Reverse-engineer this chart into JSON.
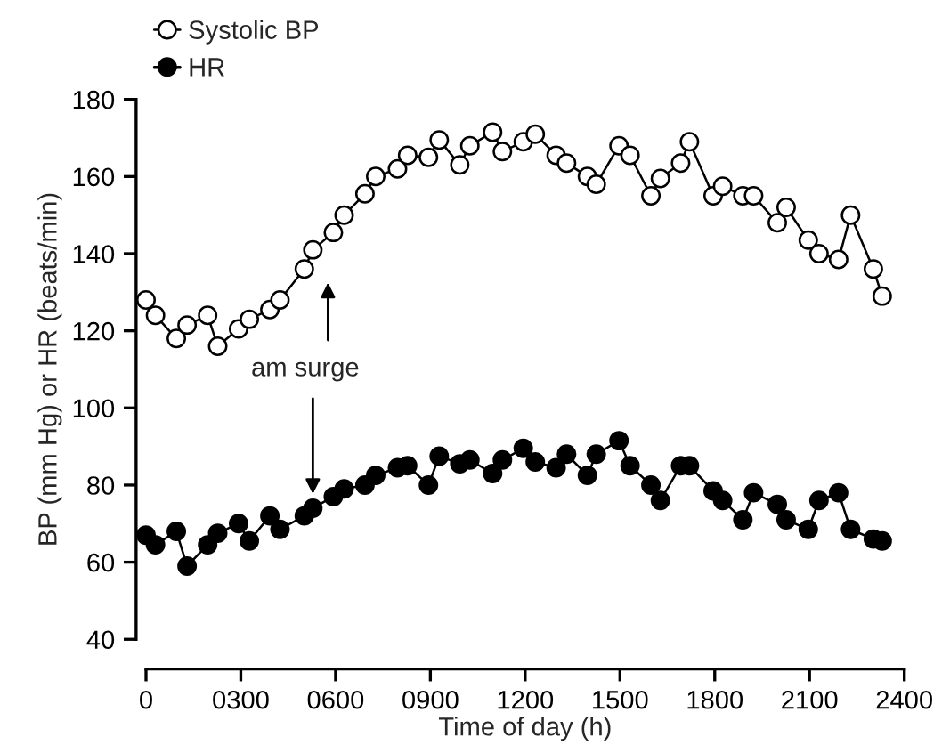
{
  "chart_data": {
    "type": "line",
    "xlabel": "Time of day (h)",
    "ylabel": "BP (mm Hg) or HR (beats/min)",
    "xlim": [
      0,
      2400
    ],
    "xticks": [
      0,
      {
        "value": 300,
        "label": "0300"
      },
      {
        "value": 600,
        "label": "0600"
      },
      {
        "value": 900,
        "label": "0900"
      },
      1200,
      1500,
      1800,
      2100,
      2400
    ],
    "ylim": [
      40,
      180
    ],
    "yticks": [
      40,
      60,
      80,
      100,
      120,
      140,
      160,
      180
    ],
    "marker": "circle",
    "line_style": "solid",
    "legend": "top left",
    "x": [
      0,
      30,
      96,
      130,
      195,
      227,
      293,
      327,
      392,
      424,
      501,
      528,
      593,
      627,
      693,
      727,
      796,
      828,
      894,
      928,
      993,
      1025,
      1097,
      1128,
      1194,
      1232,
      1298,
      1331,
      1397,
      1425,
      1497,
      1532,
      1598,
      1628,
      1692,
      1720,
      1795,
      1825,
      1889,
      1923,
      1998,
      2026,
      2096,
      2130,
      2192,
      2230,
      2302,
      2330
    ],
    "series": [
      {
        "name": "Systolic BP",
        "color": "#ffffff",
        "values": [
          128,
          124,
          118,
          121.5,
          124,
          116,
          120.5,
          123,
          125.5,
          128,
          136,
          141,
          145.5,
          150,
          155.5,
          160,
          162,
          165.5,
          165,
          169.5,
          163,
          168,
          171.5,
          166.5,
          169,
          171,
          165.5,
          163.5,
          160,
          158,
          168,
          165.5,
          155,
          159.5,
          163.5,
          169,
          155,
          157.5,
          155,
          155,
          148,
          152,
          143.5,
          140,
          138.5,
          150,
          136,
          129
        ]
      },
      {
        "name": "HR",
        "color": "#000000",
        "values": [
          67,
          64.5,
          68,
          59,
          64.5,
          67.5,
          70,
          65.5,
          72,
          68.5,
          72,
          74,
          77,
          79,
          80,
          82.5,
          84.5,
          85,
          80,
          87.5,
          85.5,
          86.5,
          83,
          86.5,
          89.5,
          86,
          84.5,
          88,
          82.5,
          88,
          91.5,
          85,
          80,
          76,
          85,
          85,
          78.5,
          76,
          71,
          78,
          75,
          71,
          68.5,
          76,
          78,
          68.5,
          66,
          65.5
        ]
      }
    ],
    "annotations": [
      "am surge"
    ]
  }
}
